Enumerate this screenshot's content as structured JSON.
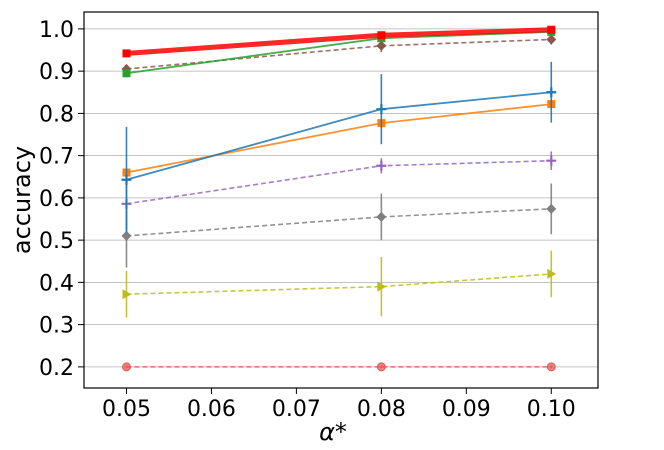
{
  "chart_data": {
    "type": "line",
    "title": "",
    "xlabel": "α*",
    "ylabel": "accuracy",
    "xlim": [
      0.045,
      0.1055
    ],
    "ylim": [
      0.15,
      1.04
    ],
    "x": [
      0.05,
      0.08,
      0.1
    ],
    "xticks": [
      0.05,
      0.06,
      0.07,
      0.08,
      0.09,
      0.1
    ],
    "xtick_labels": [
      "0.05",
      "0.06",
      "0.07",
      "0.08",
      "0.09",
      "0.10"
    ],
    "yticks": [
      0.2,
      0.3,
      0.4,
      0.5,
      0.6,
      0.7,
      0.8,
      0.9,
      1.0
    ],
    "ytick_labels": [
      "0.2",
      "0.3",
      "0.4",
      "0.5",
      "0.6",
      "0.7",
      "0.8",
      "0.9",
      "1.0"
    ],
    "grid": "horizontal",
    "legend": "none",
    "series": [
      {
        "color": "#e45756",
        "values": [
          0.2,
          0.2,
          0.2
        ],
        "err": [
          0.003,
          0.003,
          0.003
        ],
        "dash": "dashed",
        "marker": "circle",
        "width": 1.6
      },
      {
        "color": "#bcbd22",
        "values": [
          0.372,
          0.39,
          0.42
        ],
        "err": [
          0.055,
          0.07,
          0.055
        ],
        "dash": "dashed",
        "marker": "triangle-right",
        "width": 1.6
      },
      {
        "color": "#7f7f7f",
        "values": [
          0.51,
          0.555,
          0.574
        ],
        "err": [
          0.075,
          0.055,
          0.06
        ],
        "dash": "dashed",
        "marker": "diamond",
        "width": 1.6
      },
      {
        "color": "#9467bd",
        "values": [
          0.586,
          0.676,
          0.688
        ],
        "err": [
          0.06,
          0.018,
          0.022
        ],
        "dash": "dashed",
        "marker": "plus",
        "width": 1.6
      },
      {
        "color": "#ff7f0e",
        "values": [
          0.66,
          0.777,
          0.822
        ],
        "err": [
          0.008,
          0.012,
          0.01
        ],
        "dash": "solid",
        "marker": "square",
        "width": 1.8
      },
      {
        "color": "#1f77b4",
        "values": [
          0.643,
          0.81,
          0.85
        ],
        "err": [
          0.125,
          0.083,
          0.072
        ],
        "dash": "solid",
        "marker": "plus",
        "width": 1.8
      },
      {
        "color": "#8c564b",
        "values": [
          0.905,
          0.96,
          0.975
        ],
        "err": [
          0.01,
          0.015,
          0.012
        ],
        "dash": "dashed",
        "marker": "diamond",
        "width": 1.6
      },
      {
        "color": "#2ca02c",
        "values": [
          0.895,
          0.978,
          0.993
        ],
        "err": [
          0.01,
          0.008,
          0.005
        ],
        "dash": "solid",
        "marker": "square",
        "width": 1.8
      },
      {
        "color": "#ff0000",
        "values": [
          0.942,
          0.985,
          0.998
        ],
        "err": [
          0.008,
          0.005,
          0.003
        ],
        "dash": "solid",
        "marker": "square",
        "width": 5
      }
    ]
  }
}
